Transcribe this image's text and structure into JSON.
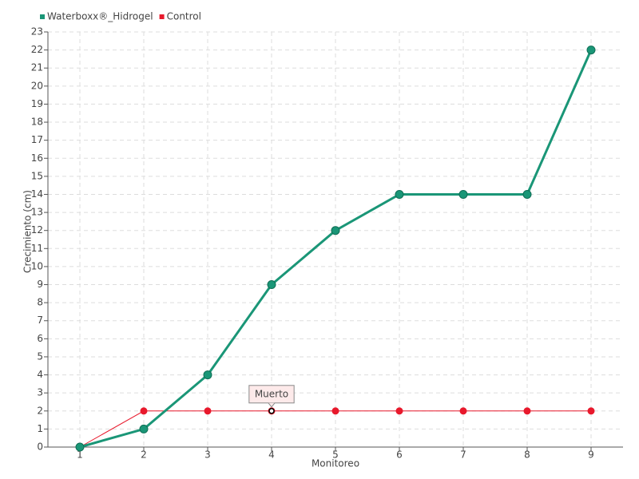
{
  "chart_data": {
    "type": "line",
    "x_label": "Monitoreo",
    "y_label": "Crecimiento (cm)",
    "x": [
      1,
      2,
      3,
      4,
      5,
      6,
      7,
      8,
      9
    ],
    "xlim": [
      0.5,
      9.5
    ],
    "xticks": [
      1,
      2,
      3,
      4,
      5,
      6,
      7,
      8,
      9
    ],
    "ylim": [
      0,
      23
    ],
    "yticks": [
      0,
      1,
      2,
      3,
      4,
      5,
      6,
      7,
      8,
      9,
      10,
      11,
      12,
      13,
      14,
      15,
      16,
      17,
      18,
      19,
      20,
      21,
      22,
      23
    ],
    "grid": true,
    "legend": "top-left",
    "series": [
      {
        "name": "Waterboxx®_Hidrogel",
        "color": "#1a9677",
        "values": [
          0,
          1,
          4,
          9,
          12,
          14,
          14,
          14,
          22
        ]
      },
      {
        "name": "Control",
        "color": "#e8192c",
        "values": [
          0,
          2,
          2,
          2,
          2,
          2,
          2,
          2,
          2
        ]
      }
    ],
    "annotations": [
      {
        "text": "Muerto",
        "x": 4,
        "y": 2
      }
    ]
  }
}
